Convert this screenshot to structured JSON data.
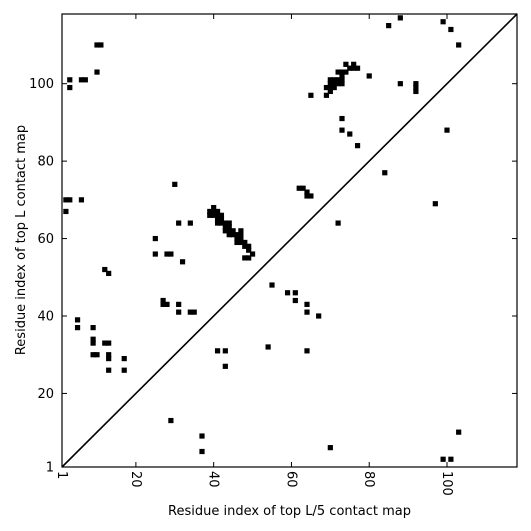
{
  "chart_data": {
    "type": "scatter",
    "title": "",
    "xlabel": "Residue index of top L/5 contact map",
    "ylabel": "Residue index of top L contact map",
    "xlim": [
      1,
      118
    ],
    "ylim": [
      1,
      118
    ],
    "x_ticks": [
      {
        "value": 1,
        "label": "1"
      },
      {
        "value": 20,
        "label": "20"
      },
      {
        "value": 40,
        "label": "40"
      },
      {
        "value": 60,
        "label": "60"
      },
      {
        "value": 80,
        "label": "80"
      },
      {
        "value": 100,
        "label": "100"
      }
    ],
    "y_ticks": [
      {
        "value": 1,
        "label": "1"
      },
      {
        "value": 20,
        "label": "20"
      },
      {
        "value": 40,
        "label": "40"
      },
      {
        "value": 60,
        "label": "60"
      },
      {
        "value": 80,
        "label": "80"
      },
      {
        "value": 100,
        "label": "100"
      }
    ],
    "diagonal": true,
    "grid": false,
    "marker_color": "#000000",
    "points": [
      [
        3,
        101
      ],
      [
        3,
        99
      ],
      [
        6,
        101
      ],
      [
        7,
        101
      ],
      [
        10,
        110
      ],
      [
        11,
        110
      ],
      [
        10,
        103
      ],
      [
        2,
        70
      ],
      [
        3,
        70
      ],
      [
        6,
        70
      ],
      [
        2,
        67
      ],
      [
        12,
        52
      ],
      [
        13,
        51
      ],
      [
        5,
        39
      ],
      [
        5,
        37
      ],
      [
        9,
        37
      ],
      [
        9,
        34
      ],
      [
        9,
        33
      ],
      [
        9,
        30
      ],
      [
        10,
        30
      ],
      [
        12,
        33
      ],
      [
        13,
        33
      ],
      [
        13,
        30
      ],
      [
        13,
        29
      ],
      [
        13,
        26
      ],
      [
        17,
        29
      ],
      [
        17,
        26
      ],
      [
        25,
        60
      ],
      [
        25,
        56
      ],
      [
        28,
        56
      ],
      [
        29,
        56
      ],
      [
        30,
        74
      ],
      [
        31,
        64
      ],
      [
        34,
        64
      ],
      [
        32,
        54
      ],
      [
        27,
        44
      ],
      [
        27,
        43
      ],
      [
        28,
        43
      ],
      [
        31,
        43
      ],
      [
        31,
        41
      ],
      [
        34,
        41
      ],
      [
        35,
        41
      ],
      [
        29,
        13
      ],
      [
        37,
        9
      ],
      [
        37,
        5
      ],
      [
        40,
        68
      ],
      [
        39,
        67
      ],
      [
        40,
        67
      ],
      [
        41,
        67
      ],
      [
        39,
        66
      ],
      [
        40,
        66
      ],
      [
        41,
        66
      ],
      [
        42,
        66
      ],
      [
        41,
        65
      ],
      [
        42,
        65
      ],
      [
        41,
        64
      ],
      [
        42,
        64
      ],
      [
        43,
        64
      ],
      [
        44,
        64
      ],
      [
        43,
        63
      ],
      [
        44,
        63
      ],
      [
        43,
        62
      ],
      [
        44,
        62
      ],
      [
        45,
        62
      ],
      [
        44,
        61
      ],
      [
        45,
        61
      ],
      [
        46,
        61
      ],
      [
        47,
        62
      ],
      [
        46,
        60
      ],
      [
        47,
        60
      ],
      [
        47,
        61
      ],
      [
        46,
        59
      ],
      [
        47,
        59
      ],
      [
        48,
        59
      ],
      [
        48,
        58
      ],
      [
        49,
        58
      ],
      [
        49,
        57
      ],
      [
        50,
        56
      ],
      [
        48,
        55
      ],
      [
        49,
        55
      ],
      [
        41,
        31
      ],
      [
        43,
        31
      ],
      [
        43,
        27
      ],
      [
        54,
        32
      ],
      [
        55,
        48
      ],
      [
        59,
        46
      ],
      [
        61,
        46
      ],
      [
        61,
        44
      ],
      [
        64,
        43
      ],
      [
        64,
        41
      ],
      [
        67,
        40
      ],
      [
        64,
        31
      ],
      [
        62,
        73
      ],
      [
        63,
        73
      ],
      [
        64,
        72
      ],
      [
        64,
        71
      ],
      [
        65,
        71
      ],
      [
        72,
        64
      ],
      [
        70,
        6
      ],
      [
        69,
        99
      ],
      [
        70,
        98
      ],
      [
        69,
        97
      ],
      [
        70,
        99
      ],
      [
        71,
        99
      ],
      [
        70,
        100
      ],
      [
        71,
        100
      ],
      [
        72,
        100
      ],
      [
        73,
        100
      ],
      [
        70,
        101
      ],
      [
        71,
        101
      ],
      [
        72,
        101
      ],
      [
        73,
        101
      ],
      [
        72,
        103
      ],
      [
        73,
        103
      ],
      [
        74,
        103
      ],
      [
        73,
        102
      ],
      [
        74,
        105
      ],
      [
        75,
        104
      ],
      [
        76,
        104
      ],
      [
        77,
        104
      ],
      [
        76,
        105
      ],
      [
        80,
        102
      ],
      [
        65,
        97
      ],
      [
        73,
        91
      ],
      [
        73,
        88
      ],
      [
        75,
        87
      ],
      [
        77,
        84
      ],
      [
        84,
        77
      ],
      [
        85,
        115
      ],
      [
        88,
        117
      ],
      [
        88,
        100
      ],
      [
        92,
        100
      ],
      [
        92,
        99
      ],
      [
        92,
        98
      ],
      [
        97,
        69
      ],
      [
        99,
        116
      ],
      [
        101,
        114
      ],
      [
        100,
        88
      ],
      [
        103,
        110
      ],
      [
        103,
        10
      ],
      [
        99,
        3
      ],
      [
        101,
        3
      ]
    ]
  }
}
